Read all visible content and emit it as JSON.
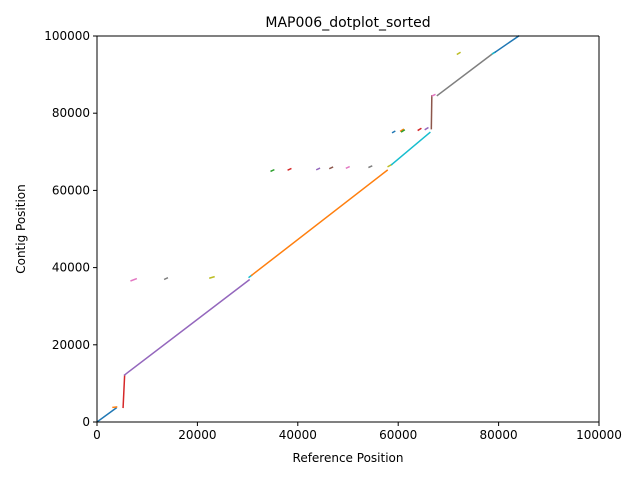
{
  "chart_data": {
    "type": "line",
    "title": "MAP006_dotplot_sorted",
    "xlabel": "Reference Position",
    "ylabel": "Contig Position",
    "xlim": [
      0,
      100000
    ],
    "ylim": [
      0,
      100000
    ],
    "x_ticks": [
      0,
      20000,
      40000,
      60000,
      80000,
      100000
    ],
    "y_ticks": [
      0,
      20000,
      40000,
      60000,
      80000,
      100000
    ],
    "x_tick_labels": [
      "0",
      "20000",
      "40000",
      "60000",
      "80000",
      "100000"
    ],
    "y_tick_labels": [
      "0",
      "20000",
      "40000",
      "60000",
      "80000",
      "100000"
    ],
    "grid": false,
    "series": [
      {
        "color": "#1f77b4",
        "points": [
          [
            0,
            0
          ],
          [
            3800,
            3600
          ]
        ]
      },
      {
        "color": "#ff7f0e",
        "points": [
          [
            3200,
            3800
          ],
          [
            3900,
            3900
          ]
        ]
      },
      {
        "color": "#d62728",
        "points": [
          [
            5200,
            3800
          ],
          [
            5500,
            12000
          ]
        ]
      },
      {
        "color": "#9467bd",
        "points": [
          [
            5500,
            12200
          ],
          [
            30300,
            36800
          ]
        ]
      },
      {
        "color": "#e377c2",
        "points": [
          [
            6800,
            36600
          ],
          [
            7800,
            37100
          ]
        ]
      },
      {
        "color": "#7f7f7f",
        "points": [
          [
            13500,
            37000
          ],
          [
            14000,
            37300
          ]
        ]
      },
      {
        "color": "#bcbd22",
        "points": [
          [
            22500,
            37300
          ],
          [
            23300,
            37600
          ]
        ]
      },
      {
        "color": "#17becf",
        "points": [
          [
            30300,
            37500
          ],
          [
            30800,
            38000
          ]
        ]
      },
      {
        "color": "#ff7f0e",
        "points": [
          [
            30800,
            38000
          ],
          [
            57800,
            65200
          ]
        ]
      },
      {
        "color": "#2ca02c",
        "points": [
          [
            34700,
            65000
          ],
          [
            35200,
            65300
          ]
        ]
      },
      {
        "color": "#d62728",
        "points": [
          [
            38100,
            65300
          ],
          [
            38600,
            65600
          ]
        ]
      },
      {
        "color": "#9467bd",
        "points": [
          [
            43800,
            65400
          ],
          [
            44300,
            65700
          ]
        ]
      },
      {
        "color": "#8c564b",
        "points": [
          [
            46400,
            65700
          ],
          [
            46900,
            66000
          ]
        ]
      },
      {
        "color": "#e377c2",
        "points": [
          [
            49700,
            65800
          ],
          [
            50200,
            66100
          ]
        ]
      },
      {
        "color": "#7f7f7f",
        "points": [
          [
            54200,
            66000
          ],
          [
            54700,
            66300
          ]
        ]
      },
      {
        "color": "#bcbd22",
        "points": [
          [
            58000,
            66200
          ],
          [
            58700,
            66700
          ]
        ]
      },
      {
        "color": "#17becf",
        "points": [
          [
            58700,
            66700
          ],
          [
            66300,
            75000
          ]
        ]
      },
      {
        "color": "#1f77b4",
        "points": [
          [
            58900,
            75000
          ],
          [
            59300,
            75300
          ]
        ]
      },
      {
        "color": "#ff7f0e",
        "points": [
          [
            60500,
            75400
          ],
          [
            61000,
            75800
          ]
        ]
      },
      {
        "color": "#2ca02c",
        "points": [
          [
            60700,
            75200
          ],
          [
            61200,
            75600
          ]
        ]
      },
      {
        "color": "#d62728",
        "points": [
          [
            64000,
            75600
          ],
          [
            64500,
            76000
          ]
        ]
      },
      {
        "color": "#9467bd",
        "points": [
          [
            65400,
            75800
          ],
          [
            65900,
            76200
          ]
        ]
      },
      {
        "color": "#8c564b",
        "points": [
          [
            66600,
            76000
          ],
          [
            66700,
            84500
          ]
        ]
      },
      {
        "color": "#e377c2",
        "points": [
          [
            66800,
            84500
          ],
          [
            67300,
            84800
          ]
        ]
      },
      {
        "color": "#7f7f7f",
        "points": [
          [
            67800,
            84600
          ],
          [
            79000,
            95600
          ]
        ]
      },
      {
        "color": "#bcbd22",
        "points": [
          [
            71800,
            95300
          ],
          [
            72300,
            95700
          ]
        ]
      },
      {
        "color": "#17becf",
        "points": [
          [
            78800,
            95400
          ],
          [
            79300,
            95800
          ]
        ]
      },
      {
        "color": "#1f77b4",
        "points": [
          [
            79300,
            95800
          ],
          [
            84000,
            100000
          ]
        ]
      }
    ]
  }
}
